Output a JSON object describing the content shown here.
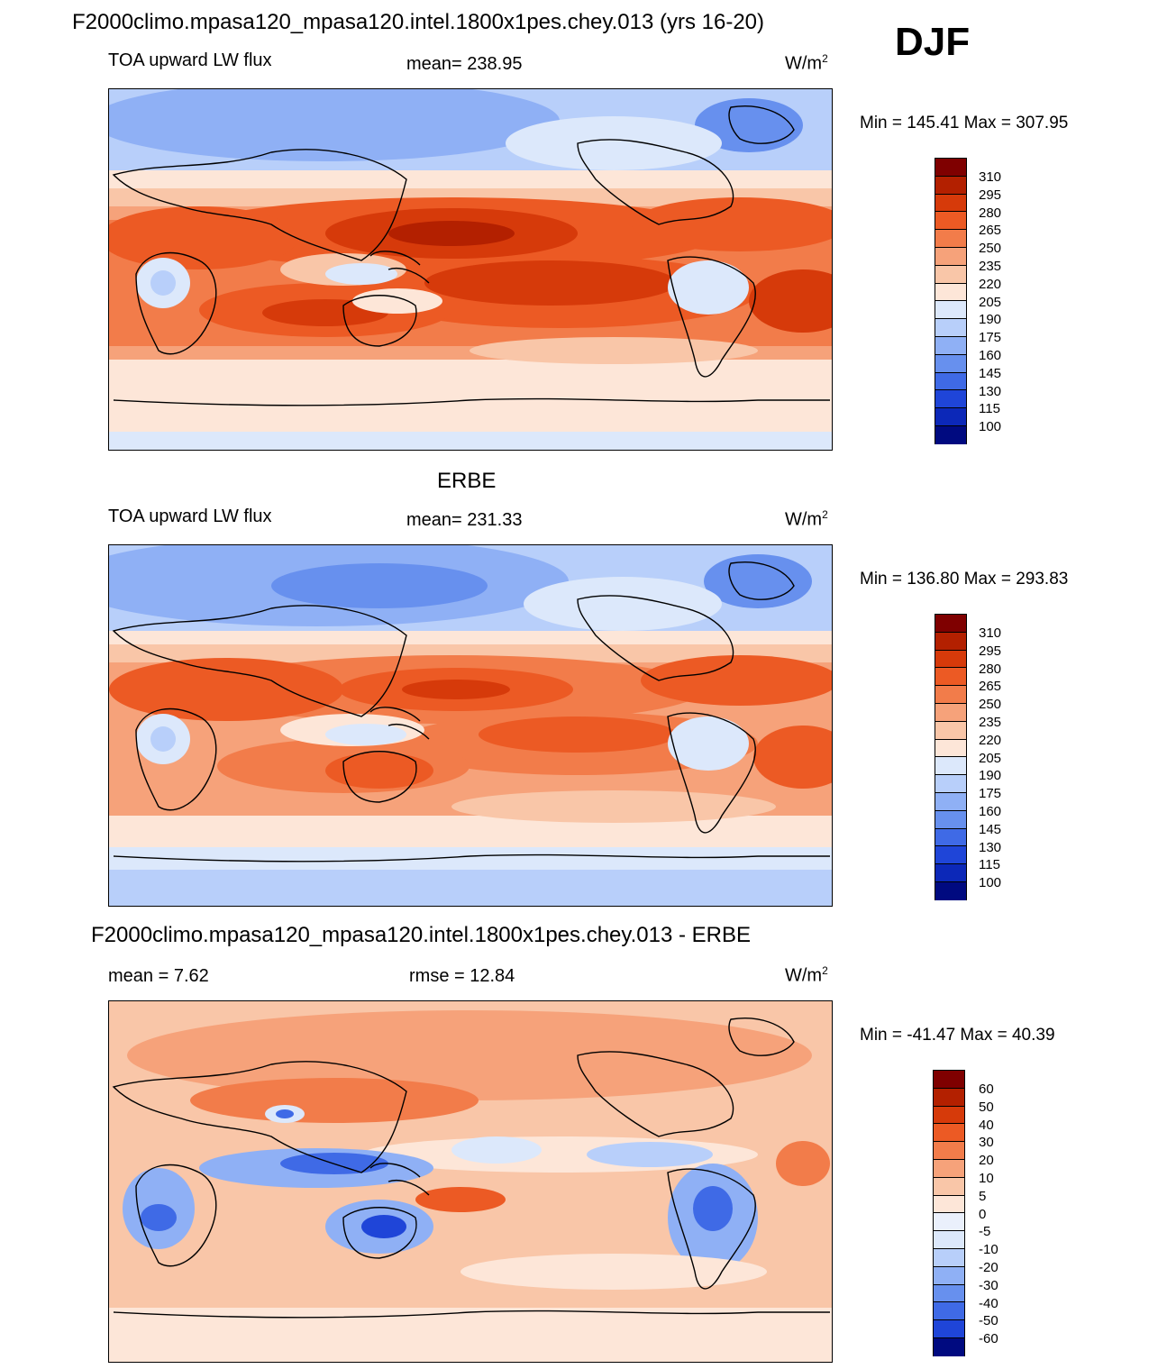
{
  "main_title": "F2000climo.mpasa120_mpasa120.intel.1800x1pes.chey.013 (yrs 16-20)",
  "season": "DJF",
  "panels": [
    {
      "title": "",
      "left_label": "TOA upward LW flux",
      "center_label": "mean= 238.95",
      "units_base": "W/m",
      "units_exp": "2",
      "minmax": "Min = 145.41 Max = 307.95",
      "colorbar_ticks": [
        "310",
        "295",
        "280",
        "265",
        "250",
        "235",
        "220",
        "205",
        "190",
        "175",
        "160",
        "145",
        "130",
        "115",
        "100"
      ]
    },
    {
      "title": "ERBE",
      "left_label": "TOA upward LW flux",
      "center_label": "mean= 231.33",
      "units_base": "W/m",
      "units_exp": "2",
      "minmax": "Min = 136.80 Max = 293.83",
      "colorbar_ticks": [
        "310",
        "295",
        "280",
        "265",
        "250",
        "235",
        "220",
        "205",
        "190",
        "175",
        "160",
        "145",
        "130",
        "115",
        "100"
      ]
    },
    {
      "title": "F2000climo.mpasa120_mpasa120.intel.1800x1pes.chey.013 - ERBE",
      "left_label": "mean =   7.62",
      "center_label": "rmse =  12.84",
      "units_base": "W/m",
      "units_exp": "2",
      "minmax": "Min = -41.47 Max =  40.39",
      "colorbar_ticks": [
        "60",
        "50",
        "40",
        "30",
        "20",
        "10",
        "5",
        "0",
        "-5",
        "-10",
        "-20",
        "-30",
        "-40",
        "-50",
        "-60"
      ]
    }
  ],
  "colors": {
    "abs_scale": [
      "#7f0000",
      "#b32000",
      "#d63a0a",
      "#ec5a24",
      "#f27c4a",
      "#f6a27a",
      "#f9c6a8",
      "#fde6d8",
      "#dce8fb",
      "#b8cffa",
      "#8fb0f5",
      "#6790ee",
      "#3f6ae6",
      "#1f45d8",
      "#0c28b8",
      "#000a80"
    ],
    "diff_scale": [
      "#7f0000",
      "#b32000",
      "#d63a0a",
      "#ec5a24",
      "#f27c4a",
      "#f6a27a",
      "#f9c6a8",
      "#fde6d8",
      "#eaf0fc",
      "#dce8fb",
      "#b8cffa",
      "#8fb0f5",
      "#6790ee",
      "#3f6ae6",
      "#1f45d8",
      "#000a80"
    ]
  },
  "chart_data": [
    {
      "type": "heatmap",
      "subtype": "global lat-lon contour map",
      "title": "F2000climo.mpasa120_mpasa120.intel.1800x1pes.chey.013 (yrs 16-20)",
      "field": "TOA upward LW flux",
      "season": "DJF",
      "units": "W/m2",
      "mean": 238.95,
      "min": 145.41,
      "max": 307.95,
      "contour_levels": [
        100,
        115,
        130,
        145,
        160,
        175,
        190,
        205,
        220,
        235,
        250,
        265,
        280,
        295,
        310
      ]
    },
    {
      "type": "heatmap",
      "subtype": "global lat-lon contour map",
      "title": "ERBE",
      "field": "TOA upward LW flux",
      "units": "W/m2",
      "mean": 231.33,
      "min": 136.8,
      "max": 293.83,
      "contour_levels": [
        100,
        115,
        130,
        145,
        160,
        175,
        190,
        205,
        220,
        235,
        250,
        265,
        280,
        295,
        310
      ]
    },
    {
      "type": "heatmap",
      "subtype": "global lat-lon contour map (difference)",
      "title": "F2000climo.mpasa120_mpasa120.intel.1800x1pes.chey.013 - ERBE",
      "units": "W/m2",
      "mean": 7.62,
      "rmse": 12.84,
      "min": -41.47,
      "max": 40.39,
      "contour_levels": [
        -60,
        -50,
        -40,
        -30,
        -20,
        -10,
        -5,
        0,
        5,
        10,
        20,
        30,
        40,
        50,
        60
      ]
    }
  ]
}
